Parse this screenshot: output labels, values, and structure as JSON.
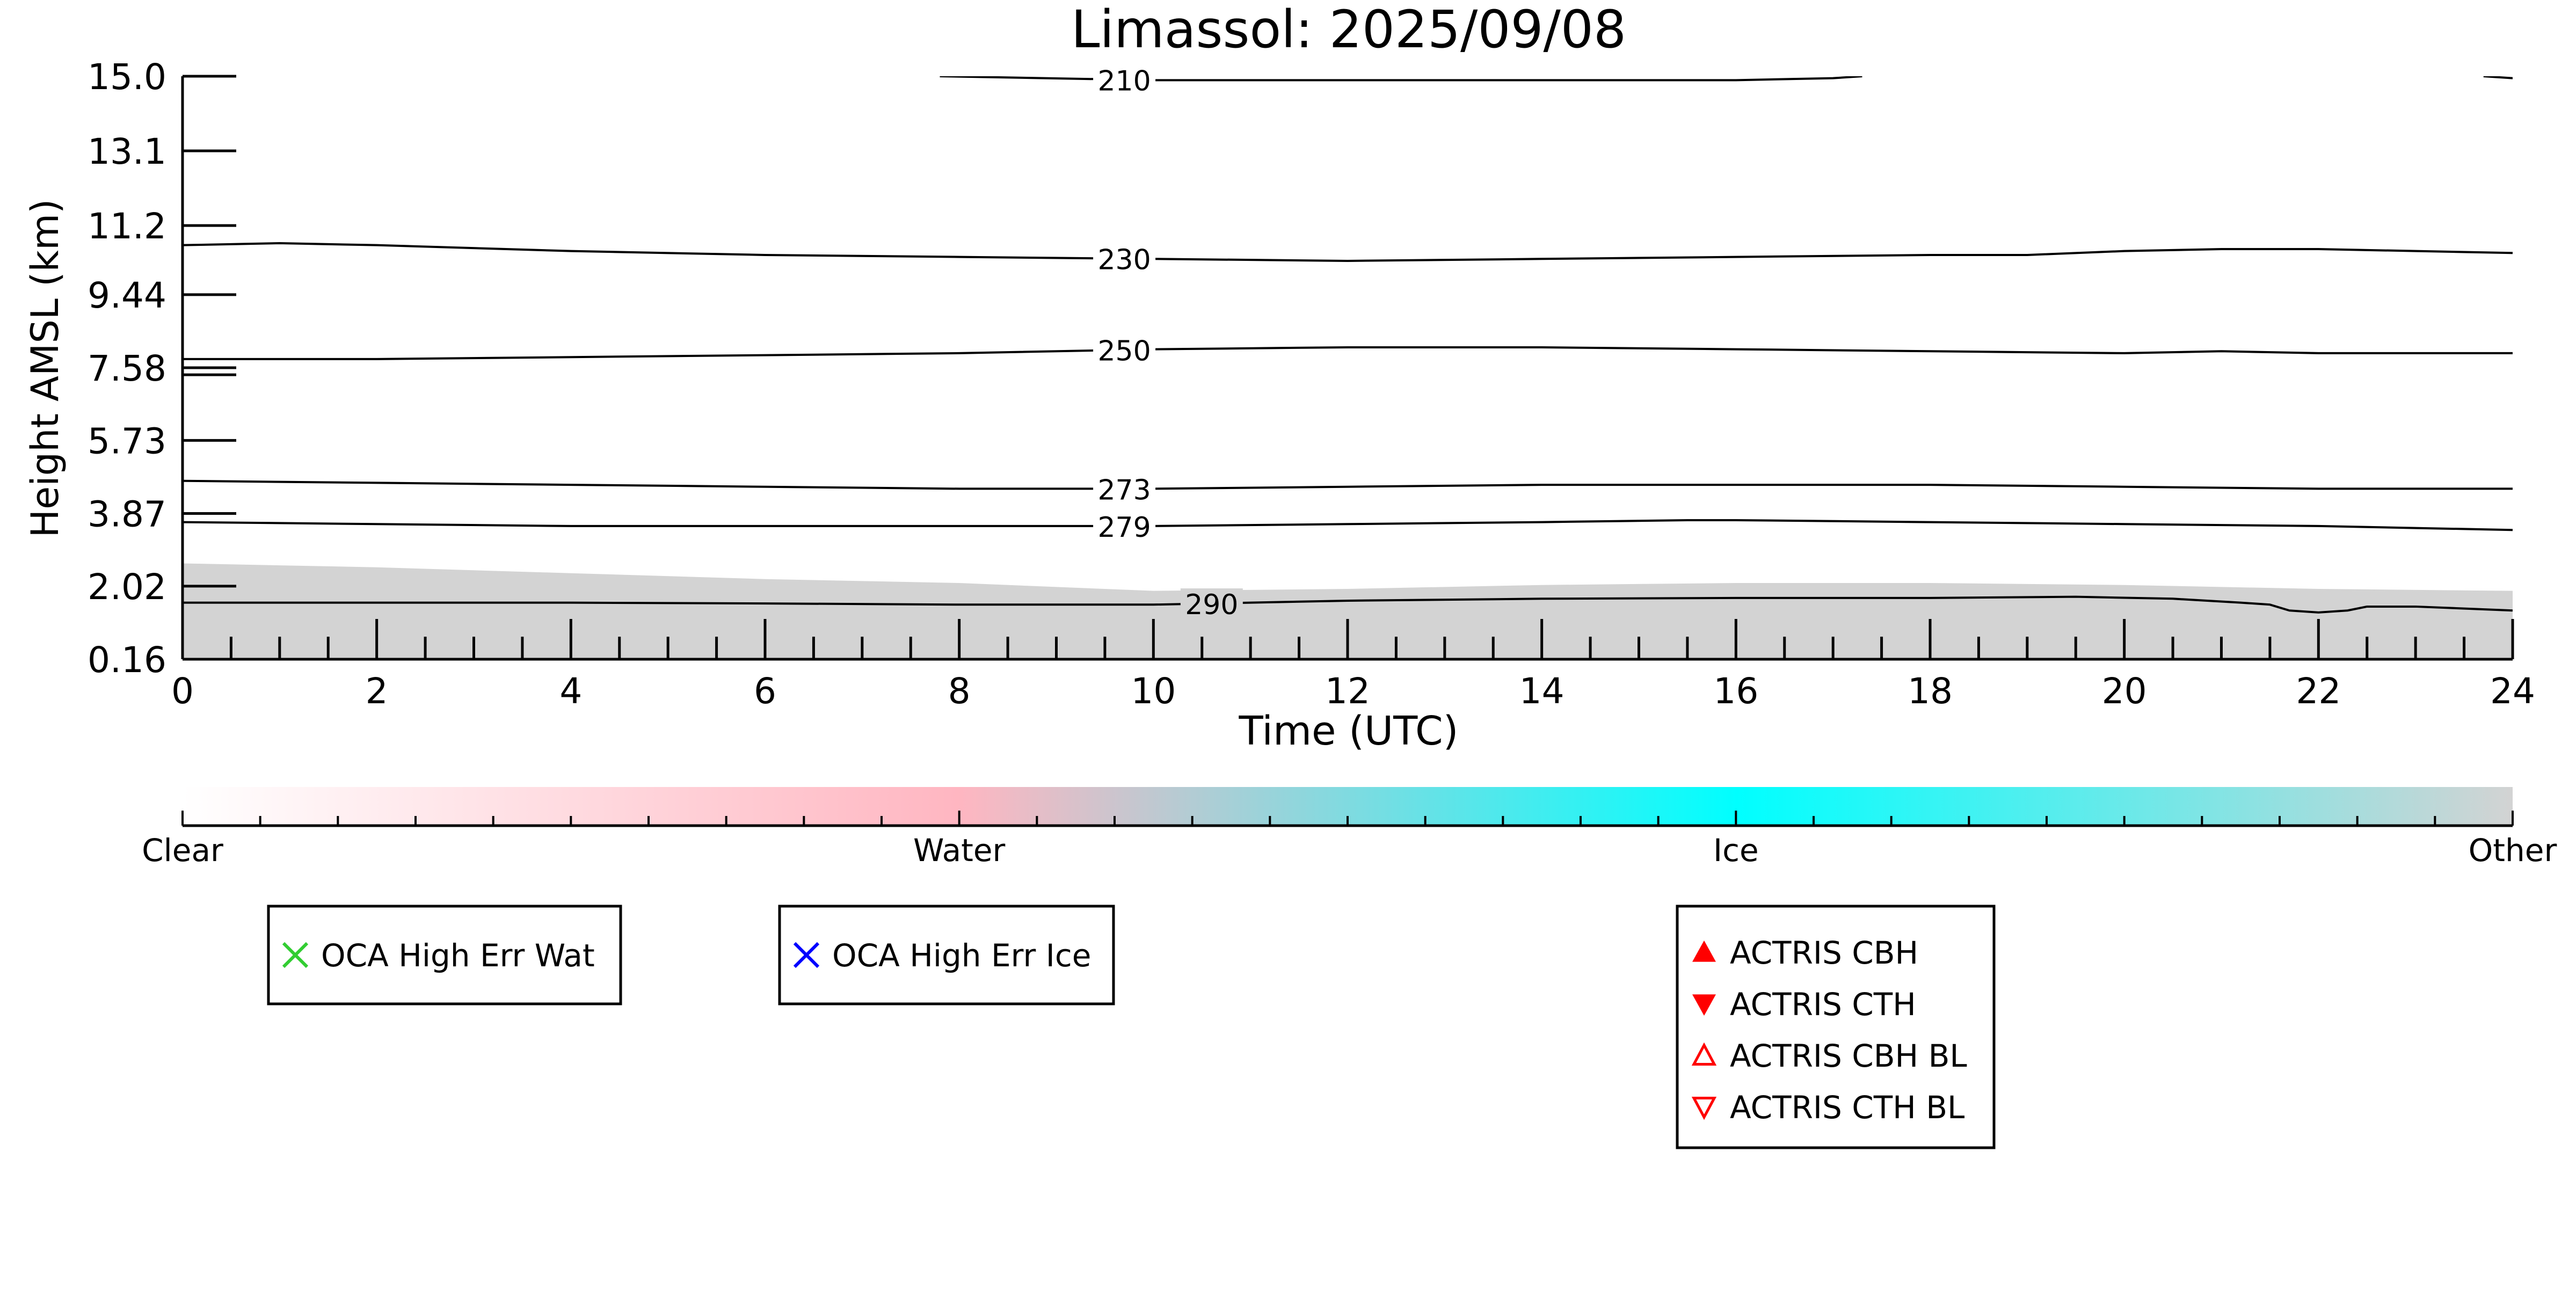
{
  "chart_data": {
    "type": "contour",
    "title": "Limassol: 2025/09/08",
    "xlabel": "Time (UTC)",
    "ylabel": "Height AMSL (km)",
    "xlim": [
      0,
      24
    ],
    "ylim": [
      0.16,
      15.0
    ],
    "x_ticks": [
      "0",
      "2",
      "4",
      "6",
      "8",
      "10",
      "12",
      "14",
      "16",
      "18",
      "20",
      "22",
      "24"
    ],
    "y_ticks": [
      "0.16",
      "2.02",
      "3.87",
      "5.73",
      "7.58",
      "9.44",
      "11.2",
      "13.1",
      "15.0"
    ],
    "y_tick_values": [
      0.16,
      2.02,
      3.87,
      5.73,
      7.58,
      9.44,
      11.2,
      13.1,
      15.0
    ],
    "grid": false,
    "background_cloud_mask": {
      "label": "Other",
      "color": "#d3d3d3",
      "top_km": [
        [
          0,
          2.6
        ],
        [
          2,
          2.5
        ],
        [
          4,
          2.35
        ],
        [
          6,
          2.2
        ],
        [
          8,
          2.1
        ],
        [
          10,
          1.9
        ],
        [
          12,
          1.95
        ],
        [
          14,
          2.05
        ],
        [
          16,
          2.1
        ],
        [
          18,
          2.1
        ],
        [
          20,
          2.05
        ],
        [
          22,
          1.95
        ],
        [
          24,
          1.9
        ]
      ]
    },
    "isotherms": [
      {
        "label": "210",
        "points": [
          [
            7.8,
            15.0
          ],
          [
            10,
            14.9
          ],
          [
            12,
            14.9
          ],
          [
            14,
            14.9
          ],
          [
            16,
            14.9
          ],
          [
            17,
            14.95
          ],
          [
            17.3,
            15.0
          ]
        ]
      },
      {
        "label": "210",
        "points": [
          [
            23.7,
            15.0
          ],
          [
            24,
            14.95
          ]
        ]
      },
      {
        "label": "230",
        "points": [
          [
            0,
            10.7
          ],
          [
            1,
            10.75
          ],
          [
            2,
            10.7
          ],
          [
            4,
            10.55
          ],
          [
            6,
            10.45
          ],
          [
            8,
            10.4
          ],
          [
            10,
            10.35
          ],
          [
            12,
            10.3
          ],
          [
            14,
            10.35
          ],
          [
            16,
            10.4
          ],
          [
            18,
            10.45
          ],
          [
            19,
            10.45
          ],
          [
            20,
            10.55
          ],
          [
            21,
            10.6
          ],
          [
            22,
            10.6
          ],
          [
            24,
            10.5
          ]
        ]
      },
      {
        "label": "250",
        "points": [
          [
            0,
            7.8
          ],
          [
            2,
            7.8
          ],
          [
            4,
            7.85
          ],
          [
            6,
            7.9
          ],
          [
            8,
            7.95
          ],
          [
            10,
            8.05
          ],
          [
            12,
            8.1
          ],
          [
            14,
            8.1
          ],
          [
            16,
            8.05
          ],
          [
            18,
            8.0
          ],
          [
            20,
            7.95
          ],
          [
            21,
            8.0
          ],
          [
            22,
            7.95
          ],
          [
            24,
            7.95
          ]
        ]
      },
      {
        "label": "273",
        "points": [
          [
            0,
            4.7
          ],
          [
            2,
            4.65
          ],
          [
            4,
            4.6
          ],
          [
            6,
            4.55
          ],
          [
            8,
            4.5
          ],
          [
            10,
            4.5
          ],
          [
            12,
            4.55
          ],
          [
            14,
            4.6
          ],
          [
            16,
            4.6
          ],
          [
            18,
            4.6
          ],
          [
            20,
            4.55
          ],
          [
            22,
            4.5
          ],
          [
            24,
            4.5
          ]
        ]
      },
      {
        "label": "279",
        "points": [
          [
            0,
            3.65
          ],
          [
            2,
            3.6
          ],
          [
            4,
            3.55
          ],
          [
            6,
            3.55
          ],
          [
            8,
            3.55
          ],
          [
            10,
            3.55
          ],
          [
            12,
            3.6
          ],
          [
            14,
            3.65
          ],
          [
            15.5,
            3.7
          ],
          [
            16,
            3.7
          ],
          [
            18,
            3.65
          ],
          [
            20,
            3.6
          ],
          [
            22,
            3.55
          ],
          [
            23,
            3.5
          ],
          [
            24,
            3.45
          ]
        ]
      },
      {
        "label": "290",
        "points": [
          [
            0,
            1.6
          ],
          [
            2,
            1.6
          ],
          [
            4,
            1.6
          ],
          [
            6,
            1.58
          ],
          [
            8,
            1.55
          ],
          [
            10,
            1.55
          ],
          [
            12,
            1.65
          ],
          [
            14,
            1.7
          ],
          [
            16,
            1.72
          ],
          [
            18,
            1.72
          ],
          [
            19.5,
            1.75
          ],
          [
            20.5,
            1.7
          ],
          [
            21.2,
            1.6
          ],
          [
            21.5,
            1.55
          ],
          [
            21.7,
            1.4
          ],
          [
            22,
            1.35
          ],
          [
            22.3,
            1.4
          ],
          [
            22.5,
            1.5
          ],
          [
            23,
            1.5
          ],
          [
            24,
            1.4
          ]
        ]
      }
    ],
    "colorbar": {
      "labels": [
        "Clear",
        "Water",
        "Ice",
        "Other"
      ],
      "stops": [
        {
          "pos": 0.0,
          "color": "#ffffff"
        },
        {
          "pos": 0.333,
          "color": "#ffb6c1"
        },
        {
          "pos": 0.667,
          "color": "#00ffff"
        },
        {
          "pos": 1.0,
          "color": "#d3d3d3"
        }
      ]
    },
    "legends": [
      {
        "entries": [
          {
            "label": "OCA High Err Wat",
            "marker": "x-marker-icon",
            "color": "#32cd32"
          }
        ]
      },
      {
        "entries": [
          {
            "label": "OCA High Err Ice",
            "marker": "x-marker-icon",
            "color": "#0000ff"
          }
        ]
      },
      {
        "entries": [
          {
            "label": "ACTRIS CBH",
            "marker": "triangle-up-filled-icon",
            "color": "#ff0000"
          },
          {
            "label": "ACTRIS CTH",
            "marker": "triangle-down-filled-icon",
            "color": "#ff0000"
          },
          {
            "label": "ACTRIS CBH BL",
            "marker": "triangle-up-open-icon",
            "color": "#ff0000"
          },
          {
            "label": "ACTRIS CTH BL",
            "marker": "triangle-down-open-icon",
            "color": "#ff0000"
          }
        ]
      }
    ]
  }
}
